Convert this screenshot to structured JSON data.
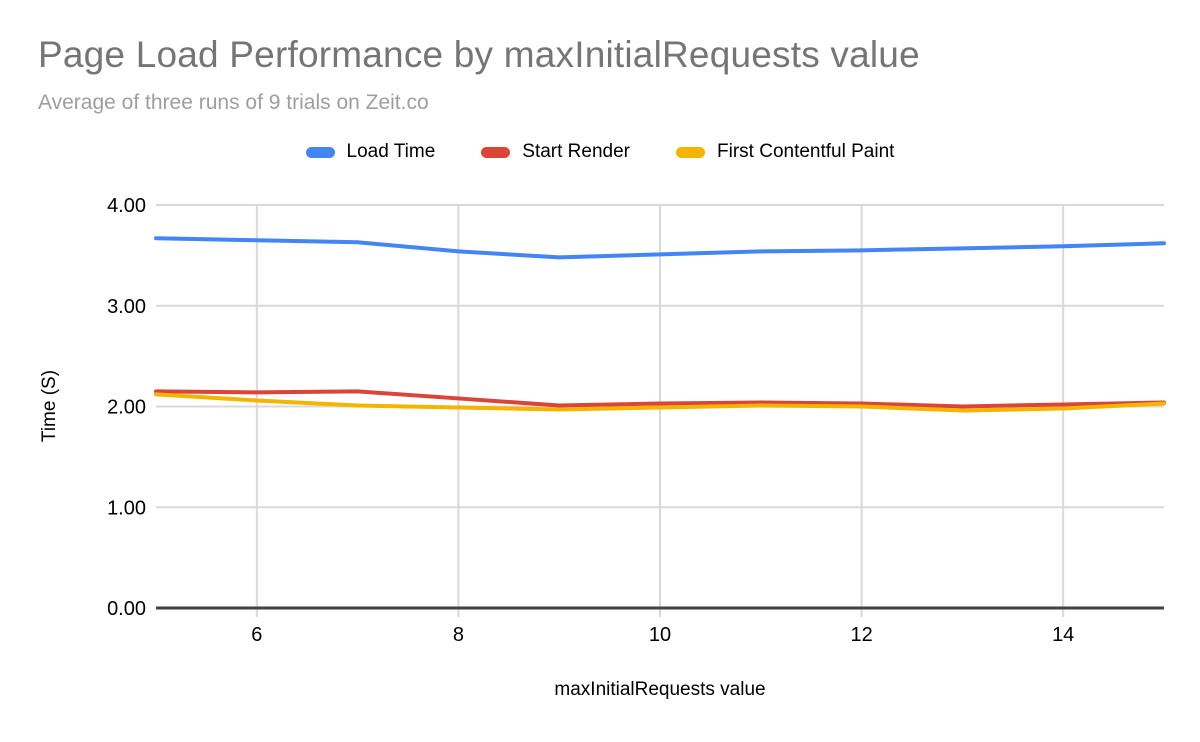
{
  "chart": {
    "title": "Page Load Performance by maxInitialRequests value",
    "subtitle": "Average of three runs of 9 trials on Zeit.co",
    "title_color": "#757575",
    "subtitle_color": "#9e9e9e"
  },
  "chart_data": {
    "type": "line",
    "title": "Page Load Performance by maxInitialRequests value",
    "subtitle": "Average of three runs of 9 trials on Zeit.co",
    "xlabel": "maxInitialRequests value",
    "ylabel": "Time (S)",
    "x": [
      5,
      6,
      7,
      8,
      9,
      10,
      11,
      12,
      13,
      14,
      15
    ],
    "xlim": [
      5,
      15
    ],
    "ylim": [
      0,
      4
    ],
    "x_tick_values": [
      6,
      8,
      10,
      12,
      14
    ],
    "y_tick_values": [
      0,
      1,
      2,
      3,
      4
    ],
    "y_tick_decimals": 2,
    "grid": true,
    "legend_position": "top",
    "series": [
      {
        "name": "Load Time",
        "color": "#4285F4",
        "values": [
          3.67,
          3.65,
          3.63,
          3.54,
          3.48,
          3.51,
          3.54,
          3.55,
          3.57,
          3.59,
          3.62
        ]
      },
      {
        "name": "Start Render",
        "color": "#DB4437",
        "values": [
          2.15,
          2.14,
          2.15,
          2.08,
          2.01,
          2.03,
          2.04,
          2.03,
          2.0,
          2.02,
          2.04
        ]
      },
      {
        "name": "First Contentful Paint",
        "color": "#F4B400",
        "values": [
          2.12,
          2.06,
          2.01,
          1.99,
          1.97,
          1.99,
          2.01,
          2.0,
          1.96,
          1.98,
          2.03
        ]
      }
    ],
    "colors": {
      "gridline": "#d9d9d9",
      "axis_line": "#424242",
      "tick_text": "#000000"
    }
  }
}
